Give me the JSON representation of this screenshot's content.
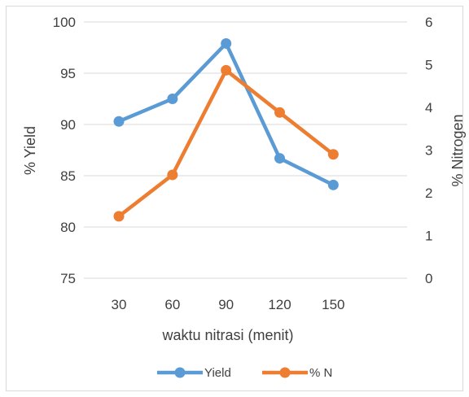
{
  "chart_data": {
    "type": "line",
    "categories": [
      "30",
      "60",
      "90",
      "120",
      "150"
    ],
    "xlabel": "waktu nitrasi (menit)",
    "ylabel": "% Yield",
    "y2label": "% Nitrogen",
    "ylim": [
      75,
      100
    ],
    "yticks": [
      "75",
      "80",
      "85",
      "90",
      "95",
      "100"
    ],
    "y2lim": [
      0,
      6
    ],
    "y2ticks": [
      "0",
      "1",
      "2",
      "3",
      "4",
      "5",
      "6"
    ],
    "grid": true,
    "legend_position": "bottom",
    "series": [
      {
        "name": "Yield",
        "axis": "left",
        "color": "#5b9bd5",
        "values": [
          90.3,
          92.5,
          97.9,
          86.7,
          84.1
        ]
      },
      {
        "name": "% N",
        "axis": "right",
        "color": "#ed7d31",
        "values": [
          1.45,
          2.42,
          4.87,
          3.88,
          2.9
        ]
      }
    ]
  }
}
